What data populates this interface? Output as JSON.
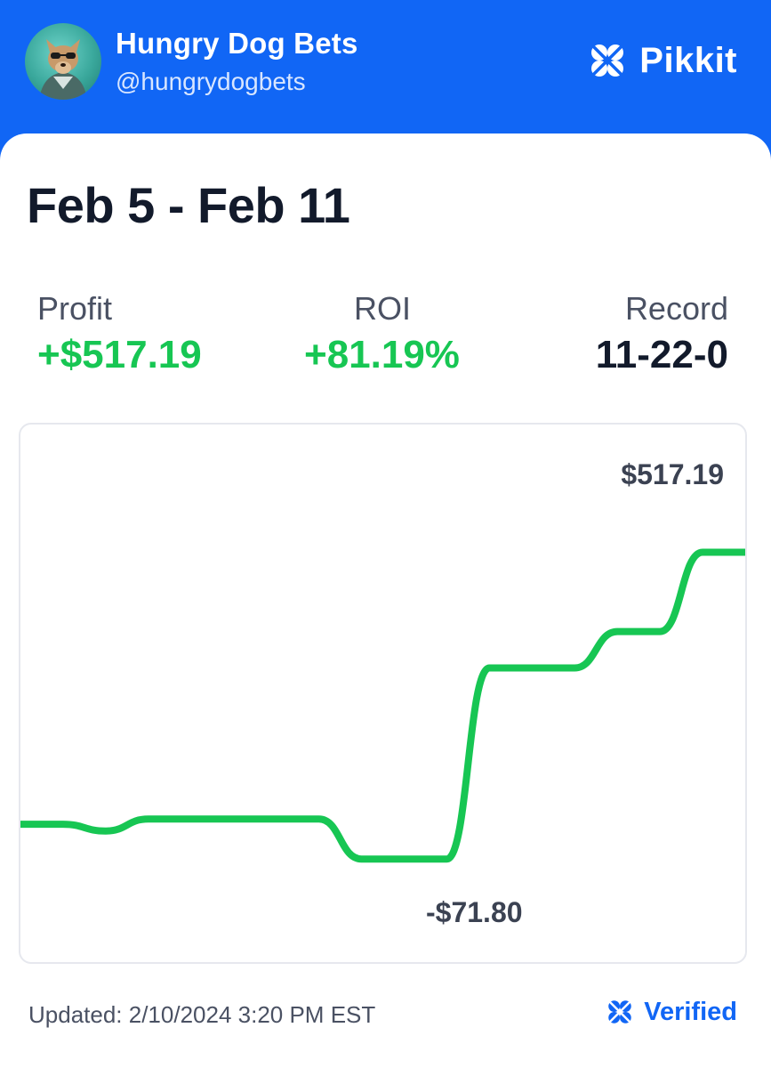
{
  "header": {
    "user_name": "Hungry Dog Bets",
    "user_handle": "@hungrydogbets",
    "brand_name": "Pikkit",
    "brand_icon": "clover-icon",
    "background_color": "#1166f5"
  },
  "summary": {
    "period": "Feb 5 - Feb 11",
    "profit": {
      "label": "Profit",
      "value": "+$517.19"
    },
    "roi": {
      "label": "ROI",
      "value": "+81.19%"
    },
    "record": {
      "label": "Record",
      "value": "11-22-0"
    }
  },
  "chart_data": {
    "type": "line",
    "title": "",
    "xlabel": "",
    "ylabel": "",
    "line_color": "#17c653",
    "max_label": "$517.19",
    "min_label": "-$71.80",
    "x": [
      0,
      1,
      2,
      3,
      4,
      5,
      6,
      7,
      8,
      9,
      10,
      11,
      12,
      13,
      14,
      15,
      16,
      17
    ],
    "y": [
      -5,
      -5,
      -18,
      5,
      5,
      5,
      5,
      5,
      -71.8,
      -71.8,
      -71.8,
      295,
      295,
      295,
      365,
      365,
      517.19,
      517.19
    ],
    "ylim": [
      -150,
      600
    ],
    "grid": false,
    "legend": "none"
  },
  "footer": {
    "updated": "Updated: 2/10/2024 3:20 PM EST",
    "verified_label": "Verified",
    "verified_icon": "clover-icon"
  }
}
